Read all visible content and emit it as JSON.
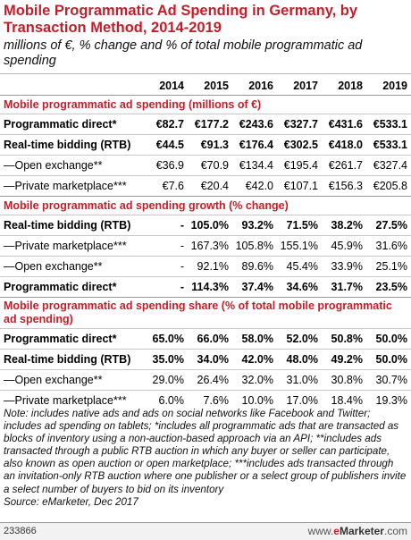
{
  "title": "Mobile Programmatic Ad Spending in Germany, by Transaction Method, 2014-2019",
  "subtitle": "millions of €, % change and % of total mobile programmatic ad spending",
  "years": [
    "2014",
    "2015",
    "2016",
    "2017",
    "2018",
    "2019"
  ],
  "sections": [
    {
      "heading": "Mobile programmatic ad spending (millions of €)",
      "rows": [
        {
          "label": "Programmatic direct*",
          "bold": true,
          "values": [
            "€82.7",
            "€177.2",
            "€243.6",
            "€327.7",
            "€431.6",
            "€533.1"
          ]
        },
        {
          "label": "Real-time bidding (RTB)",
          "bold": true,
          "values": [
            "€44.5",
            "€91.3",
            "€176.4",
            "€302.5",
            "€418.0",
            "€533.1"
          ]
        },
        {
          "label": "—Open exchange**",
          "bold": false,
          "values": [
            "€36.9",
            "€70.9",
            "€134.4",
            "€195.4",
            "€261.7",
            "€327.4"
          ]
        },
        {
          "label": "—Private marketplace***",
          "bold": false,
          "values": [
            "€7.6",
            "€20.4",
            "€42.0",
            "€107.1",
            "€156.3",
            "€205.8"
          ]
        }
      ]
    },
    {
      "heading": "Mobile programmatic ad spending growth (% change)",
      "rows": [
        {
          "label": "Real-time bidding (RTB)",
          "bold": true,
          "values": [
            "-",
            "105.0%",
            "93.2%",
            "71.5%",
            "38.2%",
            "27.5%"
          ]
        },
        {
          "label": "—Private marketplace***",
          "bold": false,
          "values": [
            "-",
            "167.3%",
            "105.8%",
            "155.1%",
            "45.9%",
            "31.6%"
          ]
        },
        {
          "label": "—Open exchange**",
          "bold": false,
          "values": [
            "-",
            "92.1%",
            "89.6%",
            "45.4%",
            "33.9%",
            "25.1%"
          ]
        },
        {
          "label": "Programmatic direct*",
          "bold": true,
          "values": [
            "-",
            "114.3%",
            "37.4%",
            "34.6%",
            "31.7%",
            "23.5%"
          ]
        }
      ]
    },
    {
      "heading": "Mobile programmatic ad spending share (% of total mobile programmatic ad spending)",
      "rows": [
        {
          "label": "Programmatic direct*",
          "bold": true,
          "values": [
            "65.0%",
            "66.0%",
            "58.0%",
            "52.0%",
            "50.8%",
            "50.0%"
          ]
        },
        {
          "label": "Real-time bidding (RTB)",
          "bold": true,
          "values": [
            "35.0%",
            "34.0%",
            "42.0%",
            "48.0%",
            "49.2%",
            "50.0%"
          ]
        },
        {
          "label": "—Open exchange**",
          "bold": false,
          "values": [
            "29.0%",
            "26.4%",
            "32.0%",
            "31.0%",
            "30.8%",
            "30.7%"
          ]
        },
        {
          "label": "—Private marketplace***",
          "bold": false,
          "values": [
            "6.0%",
            "7.6%",
            "10.0%",
            "17.0%",
            "18.4%",
            "19.3%"
          ]
        }
      ]
    }
  ],
  "note": "Note: includes native ads and ads on social networks like Facebook and Twitter; includes ad spending on tablets; *includes all programmatic ads that are transacted as blocks of inventory using a non-auction-based approach via an API; **includes ads transacted through a public RTB auction in which any buyer or seller can participate, also known as open auction or open marketplace; ***includes ads transacted through an invitation-only RTB auction where one publisher or a select group of publishers invite a select number of buyers to bid on its inventory",
  "source": "Source: eMarketer, Dec 2017",
  "footer": {
    "id": "233866",
    "brand_prefix": "www.",
    "brand_e": "e",
    "brand_name": "Marketer",
    "brand_suffix": ".com"
  },
  "colors": {
    "accent": "#c21f2a",
    "rule": "#999999"
  },
  "chart_data": {
    "type": "table",
    "title": "Mobile Programmatic Ad Spending in Germany, by Transaction Method, 2014-2019",
    "subtitle": "millions of €, % change and % of total mobile programmatic ad spending",
    "columns": [
      "2014",
      "2015",
      "2016",
      "2017",
      "2018",
      "2019"
    ],
    "tables": [
      {
        "name": "Mobile programmatic ad spending (millions of €)",
        "series": [
          {
            "name": "Programmatic direct*",
            "values": [
              82.7,
              177.2,
              243.6,
              327.7,
              431.6,
              533.1
            ]
          },
          {
            "name": "Real-time bidding (RTB)",
            "values": [
              44.5,
              91.3,
              176.4,
              302.5,
              418.0,
              533.1
            ]
          },
          {
            "name": "—Open exchange**",
            "values": [
              36.9,
              70.9,
              134.4,
              195.4,
              261.7,
              327.4
            ]
          },
          {
            "name": "—Private marketplace***",
            "values": [
              7.6,
              20.4,
              42.0,
              107.1,
              156.3,
              205.8
            ]
          }
        ]
      },
      {
        "name": "Mobile programmatic ad spending growth (% change)",
        "series": [
          {
            "name": "Real-time bidding (RTB)",
            "values": [
              null,
              105.0,
              93.2,
              71.5,
              38.2,
              27.5
            ]
          },
          {
            "name": "—Private marketplace***",
            "values": [
              null,
              167.3,
              105.8,
              155.1,
              45.9,
              31.6
            ]
          },
          {
            "name": "—Open exchange**",
            "values": [
              null,
              92.1,
              89.6,
              45.4,
              33.9,
              25.1
            ]
          },
          {
            "name": "Programmatic direct*",
            "values": [
              null,
              114.3,
              37.4,
              34.6,
              31.7,
              23.5
            ]
          }
        ]
      },
      {
        "name": "Mobile programmatic ad spending share (% of total mobile programmatic ad spending)",
        "series": [
          {
            "name": "Programmatic direct*",
            "values": [
              65.0,
              66.0,
              58.0,
              52.0,
              50.8,
              50.0
            ]
          },
          {
            "name": "Real-time bidding (RTB)",
            "values": [
              35.0,
              34.0,
              42.0,
              48.0,
              49.2,
              50.0
            ]
          },
          {
            "name": "—Open exchange**",
            "values": [
              29.0,
              26.4,
              32.0,
              31.0,
              30.8,
              30.7
            ]
          },
          {
            "name": "—Private marketplace***",
            "values": [
              6.0,
              7.6,
              10.0,
              17.0,
              18.4,
              19.3
            ]
          }
        ]
      }
    ]
  }
}
